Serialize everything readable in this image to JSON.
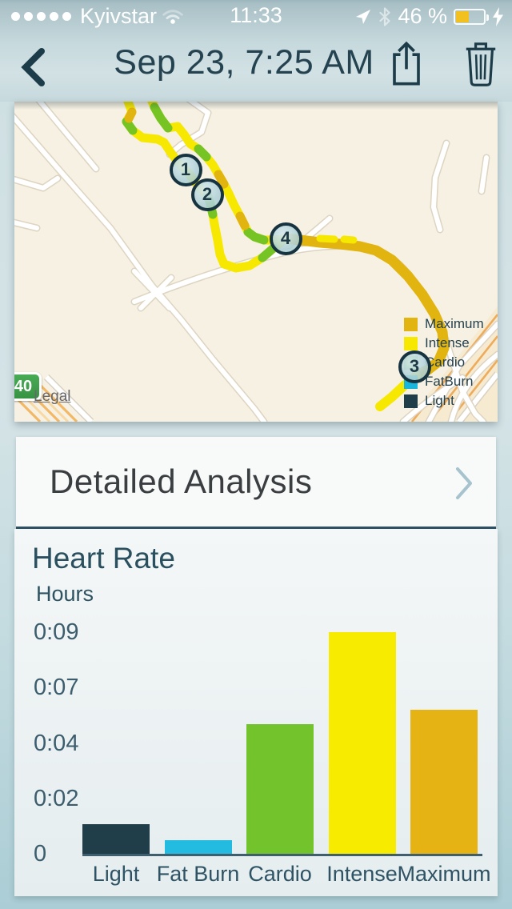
{
  "status_bar": {
    "carrier": "Kyivstar",
    "signal_dots": 5,
    "time": "11:33",
    "battery_percent": "46 %",
    "battery_level": 0.46,
    "battery_color": "#f2c120",
    "icons": [
      "location-arrow",
      "bluetooth",
      "battery",
      "charging-bolt",
      "wifi"
    ]
  },
  "nav_bar": {
    "title": "Sep 23, 7:25 AM",
    "back_icon": "chevron-left",
    "actions": [
      "share",
      "trash"
    ]
  },
  "map": {
    "legend": [
      {
        "label": "Maximum",
        "color": "#e2b40f"
      },
      {
        "label": "Intense",
        "color": "#f6e800"
      },
      {
        "label": "Cardio",
        "color": "#72c32c"
      },
      {
        "label": "FatBurn",
        "color": "#18b6da"
      },
      {
        "label": "Light",
        "color": "#1f3e4a"
      }
    ],
    "markers": [
      "1",
      "2",
      "3",
      "4"
    ],
    "speed_limit_sign": "40",
    "legal_link": "Legal",
    "route_colors": {
      "intense": "#f6e800",
      "cardio": "#76c423",
      "maximum": "#e2b40f"
    }
  },
  "detailed_analysis": {
    "label": "Detailed Analysis"
  },
  "chart_data": {
    "type": "bar",
    "title": "Heart Rate",
    "ylabel": "Hours",
    "categories": [
      "Light",
      "Fat Burn",
      "Cardio",
      "Intense",
      "Maximum"
    ],
    "values_minutes": [
      1.2,
      0.55,
      5.25,
      9.0,
      5.85
    ],
    "series_unit": "time in zone, minutes (labels shown as h:mm)",
    "bar_colors": [
      "#1f3e4a",
      "#23bce0",
      "#72c32c",
      "#f7ec00",
      "#e5b414"
    ],
    "yticks": {
      "labels": [
        "0",
        "0:02",
        "0:04",
        "0:07",
        "0:09"
      ],
      "minutes": [
        0,
        2.25,
        4.5,
        6.75,
        9
      ]
    },
    "ylim_minutes": [
      0,
      9
    ],
    "grid": false,
    "legend_position": "none"
  }
}
